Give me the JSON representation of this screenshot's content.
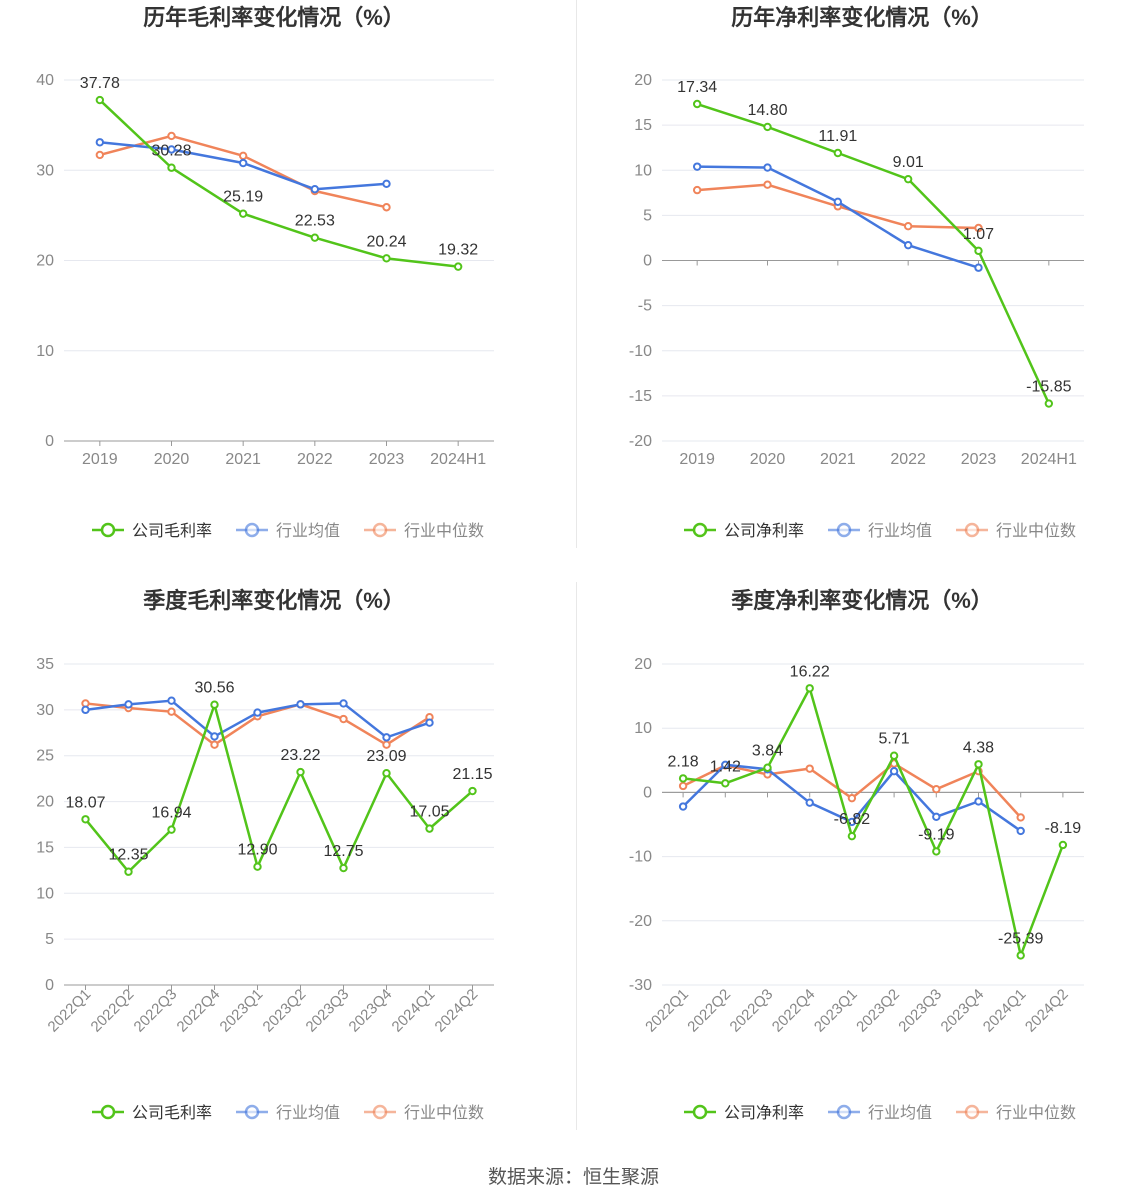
{
  "source": "数据来源：恒生聚源",
  "colors": {
    "company": "#52c41a",
    "average": "#4477dd",
    "median": "#f0845a",
    "grid": "#e6e8ef",
    "axis": "#888888",
    "label": "#333333",
    "title": "#333333"
  },
  "chart_data": [
    {
      "type": "line",
      "title": "历年毛利率变化情况（%）",
      "categories": [
        "2019",
        "2020",
        "2021",
        "2022",
        "2023",
        "2024H1"
      ],
      "ylim": [
        0,
        40
      ],
      "yticks": [
        0,
        10,
        20,
        30,
        40
      ],
      "series": [
        {
          "key": "company",
          "name": "公司毛利率",
          "values": [
            37.78,
            30.28,
            25.19,
            22.53,
            20.24,
            19.32
          ],
          "labels": true
        },
        {
          "key": "average",
          "name": "行业均值",
          "values": [
            33.1,
            32.3,
            30.8,
            27.9,
            28.5,
            null
          ]
        },
        {
          "key": "median",
          "name": "行业中位数",
          "values": [
            31.7,
            33.8,
            31.6,
            27.7,
            25.9,
            null
          ]
        }
      ],
      "rotated_ticks": false
    },
    {
      "type": "line",
      "title": "历年净利率变化情况（%）",
      "categories": [
        "2019",
        "2020",
        "2021",
        "2022",
        "2023",
        "2024H1"
      ],
      "ylim": [
        -20,
        20
      ],
      "yticks": [
        -20,
        -15,
        -10,
        -5,
        0,
        5,
        10,
        15,
        20
      ],
      "series": [
        {
          "key": "company",
          "name": "公司净利率",
          "values": [
            17.34,
            14.8,
            11.91,
            9.01,
            1.07,
            -15.85
          ],
          "labels": true
        },
        {
          "key": "average",
          "name": "行业均值",
          "values": [
            10.4,
            10.3,
            6.5,
            1.7,
            -0.8,
            null
          ]
        },
        {
          "key": "median",
          "name": "行业中位数",
          "values": [
            7.8,
            8.4,
            6.0,
            3.8,
            3.6,
            null
          ]
        }
      ],
      "rotated_ticks": false
    },
    {
      "type": "line",
      "title": "季度毛利率变化情况（%）",
      "categories": [
        "2022Q1",
        "2022Q2",
        "2022Q3",
        "2022Q4",
        "2023Q1",
        "2023Q2",
        "2023Q3",
        "2023Q4",
        "2024Q1",
        "2024Q2"
      ],
      "ylim": [
        0,
        35
      ],
      "yticks": [
        0,
        5,
        10,
        15,
        20,
        25,
        30,
        35
      ],
      "series": [
        {
          "key": "company",
          "name": "公司毛利率",
          "values": [
            18.07,
            12.35,
            16.94,
            30.56,
            12.9,
            23.22,
            12.75,
            23.09,
            17.05,
            21.15
          ],
          "labels": true
        },
        {
          "key": "average",
          "name": "行业均值",
          "values": [
            30.0,
            30.6,
            31.0,
            27.1,
            29.7,
            30.6,
            30.7,
            27.0,
            28.6,
            null
          ]
        },
        {
          "key": "median",
          "name": "行业中位数",
          "values": [
            30.7,
            30.2,
            29.8,
            26.2,
            29.3,
            30.6,
            29.0,
            26.2,
            29.2,
            null
          ]
        }
      ],
      "rotated_ticks": true
    },
    {
      "type": "line",
      "title": "季度净利率变化情况（%）",
      "categories": [
        "2022Q1",
        "2022Q2",
        "2022Q3",
        "2022Q4",
        "2023Q1",
        "2023Q2",
        "2023Q3",
        "2023Q4",
        "2024Q1",
        "2024Q2"
      ],
      "ylim": [
        -30,
        20
      ],
      "yticks": [
        -30,
        -20,
        -10,
        0,
        10,
        20
      ],
      "series": [
        {
          "key": "company",
          "name": "公司净利率",
          "values": [
            2.18,
            1.42,
            3.84,
            16.22,
            -6.82,
            5.71,
            -9.19,
            4.38,
            -25.39,
            -8.19
          ],
          "labels": true
        },
        {
          "key": "average",
          "name": "行业均值",
          "values": [
            -2.2,
            4.3,
            3.6,
            -1.6,
            -4.6,
            3.3,
            -3.8,
            -1.4,
            -6.0,
            null
          ]
        },
        {
          "key": "median",
          "name": "行业中位数",
          "values": [
            1.0,
            4.2,
            2.8,
            3.7,
            -0.9,
            4.5,
            0.5,
            3.3,
            -3.9,
            null
          ]
        }
      ],
      "rotated_ticks": true
    }
  ]
}
